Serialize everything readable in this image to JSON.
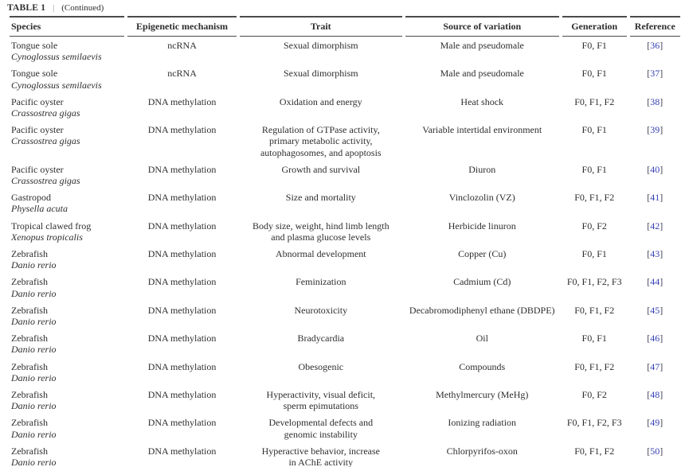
{
  "colors": {
    "reference_link": "#3540b4",
    "rule": "#4b4b4b",
    "text": "#2e2e2e",
    "background": "#ffffff"
  },
  "caption": {
    "table_label": "TABLE 1",
    "separator": "|",
    "continued": "(Continued)"
  },
  "table": {
    "columns": [
      "Species",
      "Epigenetic mechanism",
      "Trait",
      "Source of variation",
      "Generation",
      "Reference"
    ],
    "ref_bracket_open": "[",
    "ref_bracket_close": "]",
    "rows": [
      {
        "species_common": "Tongue sole",
        "species_latin": "Cynoglossus semilaevis",
        "mechanism": "ncRNA",
        "trait": "Sexual dimorphism",
        "source": "Male and pseudomale",
        "generation": "F0, F1",
        "reference": "36"
      },
      {
        "species_common": "Tongue sole",
        "species_latin": "Cynoglossus semilaevis",
        "mechanism": "ncRNA",
        "trait": "Sexual dimorphism",
        "source": "Male and pseudomale",
        "generation": "F0, F1",
        "reference": "37"
      },
      {
        "species_common": "Pacific oyster",
        "species_latin": "Crassostrea gigas",
        "mechanism": "DNA methylation",
        "trait": "Oxidation and energy",
        "source": "Heat shock",
        "generation": "F0, F1, F2",
        "reference": "38"
      },
      {
        "species_common": "Pacific oyster",
        "species_latin": "Crassostrea gigas",
        "mechanism": "DNA methylation",
        "trait": "Regulation of GTPase activity,\nprimary metabolic activity,\nautophagosomes, and apoptosis",
        "source": "Variable intertidal environment",
        "generation": "F0, F1",
        "reference": "39"
      },
      {
        "species_common": "Pacific oyster",
        "species_latin": "Crassostrea gigas",
        "mechanism": "DNA methylation",
        "trait": "Growth and survival",
        "source": "Diuron",
        "generation": "F0, F1",
        "reference": "40"
      },
      {
        "species_common": "Gastropod",
        "species_latin": "Physella acuta",
        "mechanism": "DNA methylation",
        "trait": "Size and mortality",
        "source": "Vinclozolin (VZ)",
        "generation": "F0, F1, F2",
        "reference": "41"
      },
      {
        "species_common": "Tropical clawed frog",
        "species_latin": "Xenopus tropicalis",
        "mechanism": "DNA methylation",
        "trait": "Body size, weight, hind limb length\nand plasma glucose levels",
        "source": "Herbicide linuron",
        "generation": "F0, F2",
        "reference": "42"
      },
      {
        "species_common": "Zebrafish",
        "species_latin": "Danio rerio",
        "mechanism": "DNA methylation",
        "trait": "Abnormal development",
        "source": "Copper (Cu)",
        "generation": "F0, F1",
        "reference": "43"
      },
      {
        "species_common": "Zebrafish",
        "species_latin": "Danio rerio",
        "mechanism": "DNA methylation",
        "trait": "Feminization",
        "source": "Cadmium (Cd)",
        "generation": "F0, F1, F2, F3",
        "reference": "44"
      },
      {
        "species_common": "Zebrafish",
        "species_latin": "Danio rerio",
        "mechanism": "DNA methylation",
        "trait": "Neurotoxicity",
        "source": "Decabromodiphenyl ethane (DBDPE)",
        "generation": "F0, F1, F2",
        "reference": "45"
      },
      {
        "species_common": "Zebrafish",
        "species_latin": "Danio rerio",
        "mechanism": "DNA methylation",
        "trait": "Bradycardia",
        "source": "Oil",
        "generation": "F0, F1",
        "reference": "46"
      },
      {
        "species_common": "Zebrafish",
        "species_latin": "Danio rerio",
        "mechanism": "DNA methylation",
        "trait": "Obesogenic",
        "source": "Compounds",
        "generation": "F0, F1, F2",
        "reference": "47"
      },
      {
        "species_common": "Zebrafish",
        "species_latin": "Danio rerio",
        "mechanism": "DNA methylation",
        "trait": "Hyperactivity, visual deficit,\nsperm epimutations",
        "source": "Methylmercury (MeHg)",
        "generation": "F0, F2",
        "reference": "48"
      },
      {
        "species_common": "Zebrafish",
        "species_latin": "Danio rerio",
        "mechanism": "DNA methylation",
        "trait": "Developmental defects and\ngenomic instability",
        "source": "Ionizing radiation",
        "generation": "F0, F1, F2, F3",
        "reference": "49"
      },
      {
        "species_common": "Zebrafish",
        "species_latin": "Danio rerio",
        "mechanism": "DNA methylation",
        "trait": "Hyperactive behavior, increase\nin AChE activity",
        "source": "Chlorpyrifos-oxon",
        "generation": "F0, F1, F2",
        "reference": "50"
      }
    ]
  }
}
